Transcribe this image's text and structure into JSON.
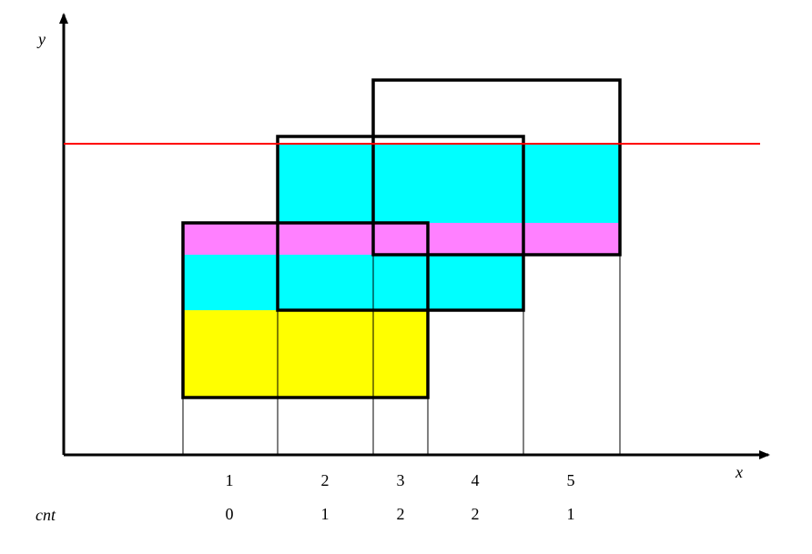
{
  "axes": {
    "x_label": "x",
    "y_label": "y"
  },
  "row_label": "cnt",
  "columns": [
    {
      "index": 1,
      "count": 0
    },
    {
      "index": 2,
      "count": 1
    },
    {
      "index": 3,
      "count": 2
    },
    {
      "index": 4,
      "count": 2
    },
    {
      "index": 5,
      "count": 1
    }
  ]
}
